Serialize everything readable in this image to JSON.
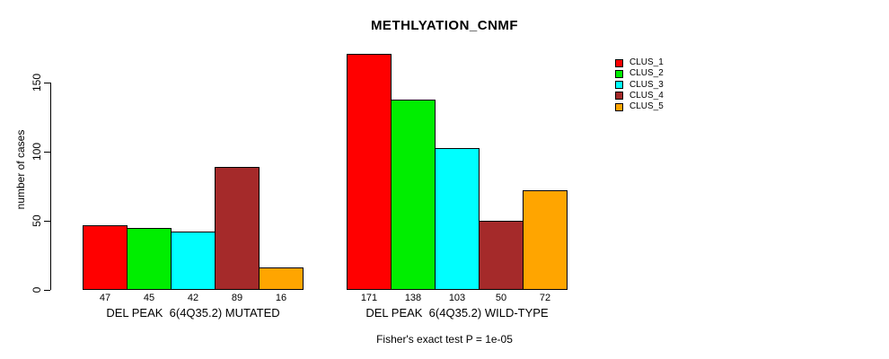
{
  "title": "METHLYATION_CNMF",
  "footnote": "Fisher's exact test P = 1e-05",
  "chart_data": {
    "type": "bar",
    "title": "METHLYATION_CNMF",
    "xlabel": "",
    "ylabel": "number of cases",
    "ylim": [
      0,
      150
    ],
    "yticks": [
      0,
      50,
      100,
      150
    ],
    "grid": false,
    "legend_position": "right",
    "categories": [
      "DEL PEAK  6(4Q35.2) MUTATED",
      "DEL PEAK  6(4Q35.2) WILD-TYPE"
    ],
    "series": [
      {
        "name": "CLUS_1",
        "color": "#ff0000",
        "values": [
          47,
          171
        ]
      },
      {
        "name": "CLUS_2",
        "color": "#00ee00",
        "values": [
          45,
          138
        ]
      },
      {
        "name": "CLUS_3",
        "color": "#00ffff",
        "values": [
          42,
          103
        ]
      },
      {
        "name": "CLUS_4",
        "color": "#a52a2a",
        "values": [
          89,
          50
        ]
      },
      {
        "name": "CLUS_5",
        "color": "#ffa500",
        "values": [
          16,
          72
        ]
      }
    ],
    "bar_value_labels": [
      [
        47,
        45,
        42,
        89,
        16
      ],
      [
        171,
        138,
        103,
        50,
        72
      ]
    ],
    "annotation": "Fisher's exact test P = 1e-05"
  }
}
